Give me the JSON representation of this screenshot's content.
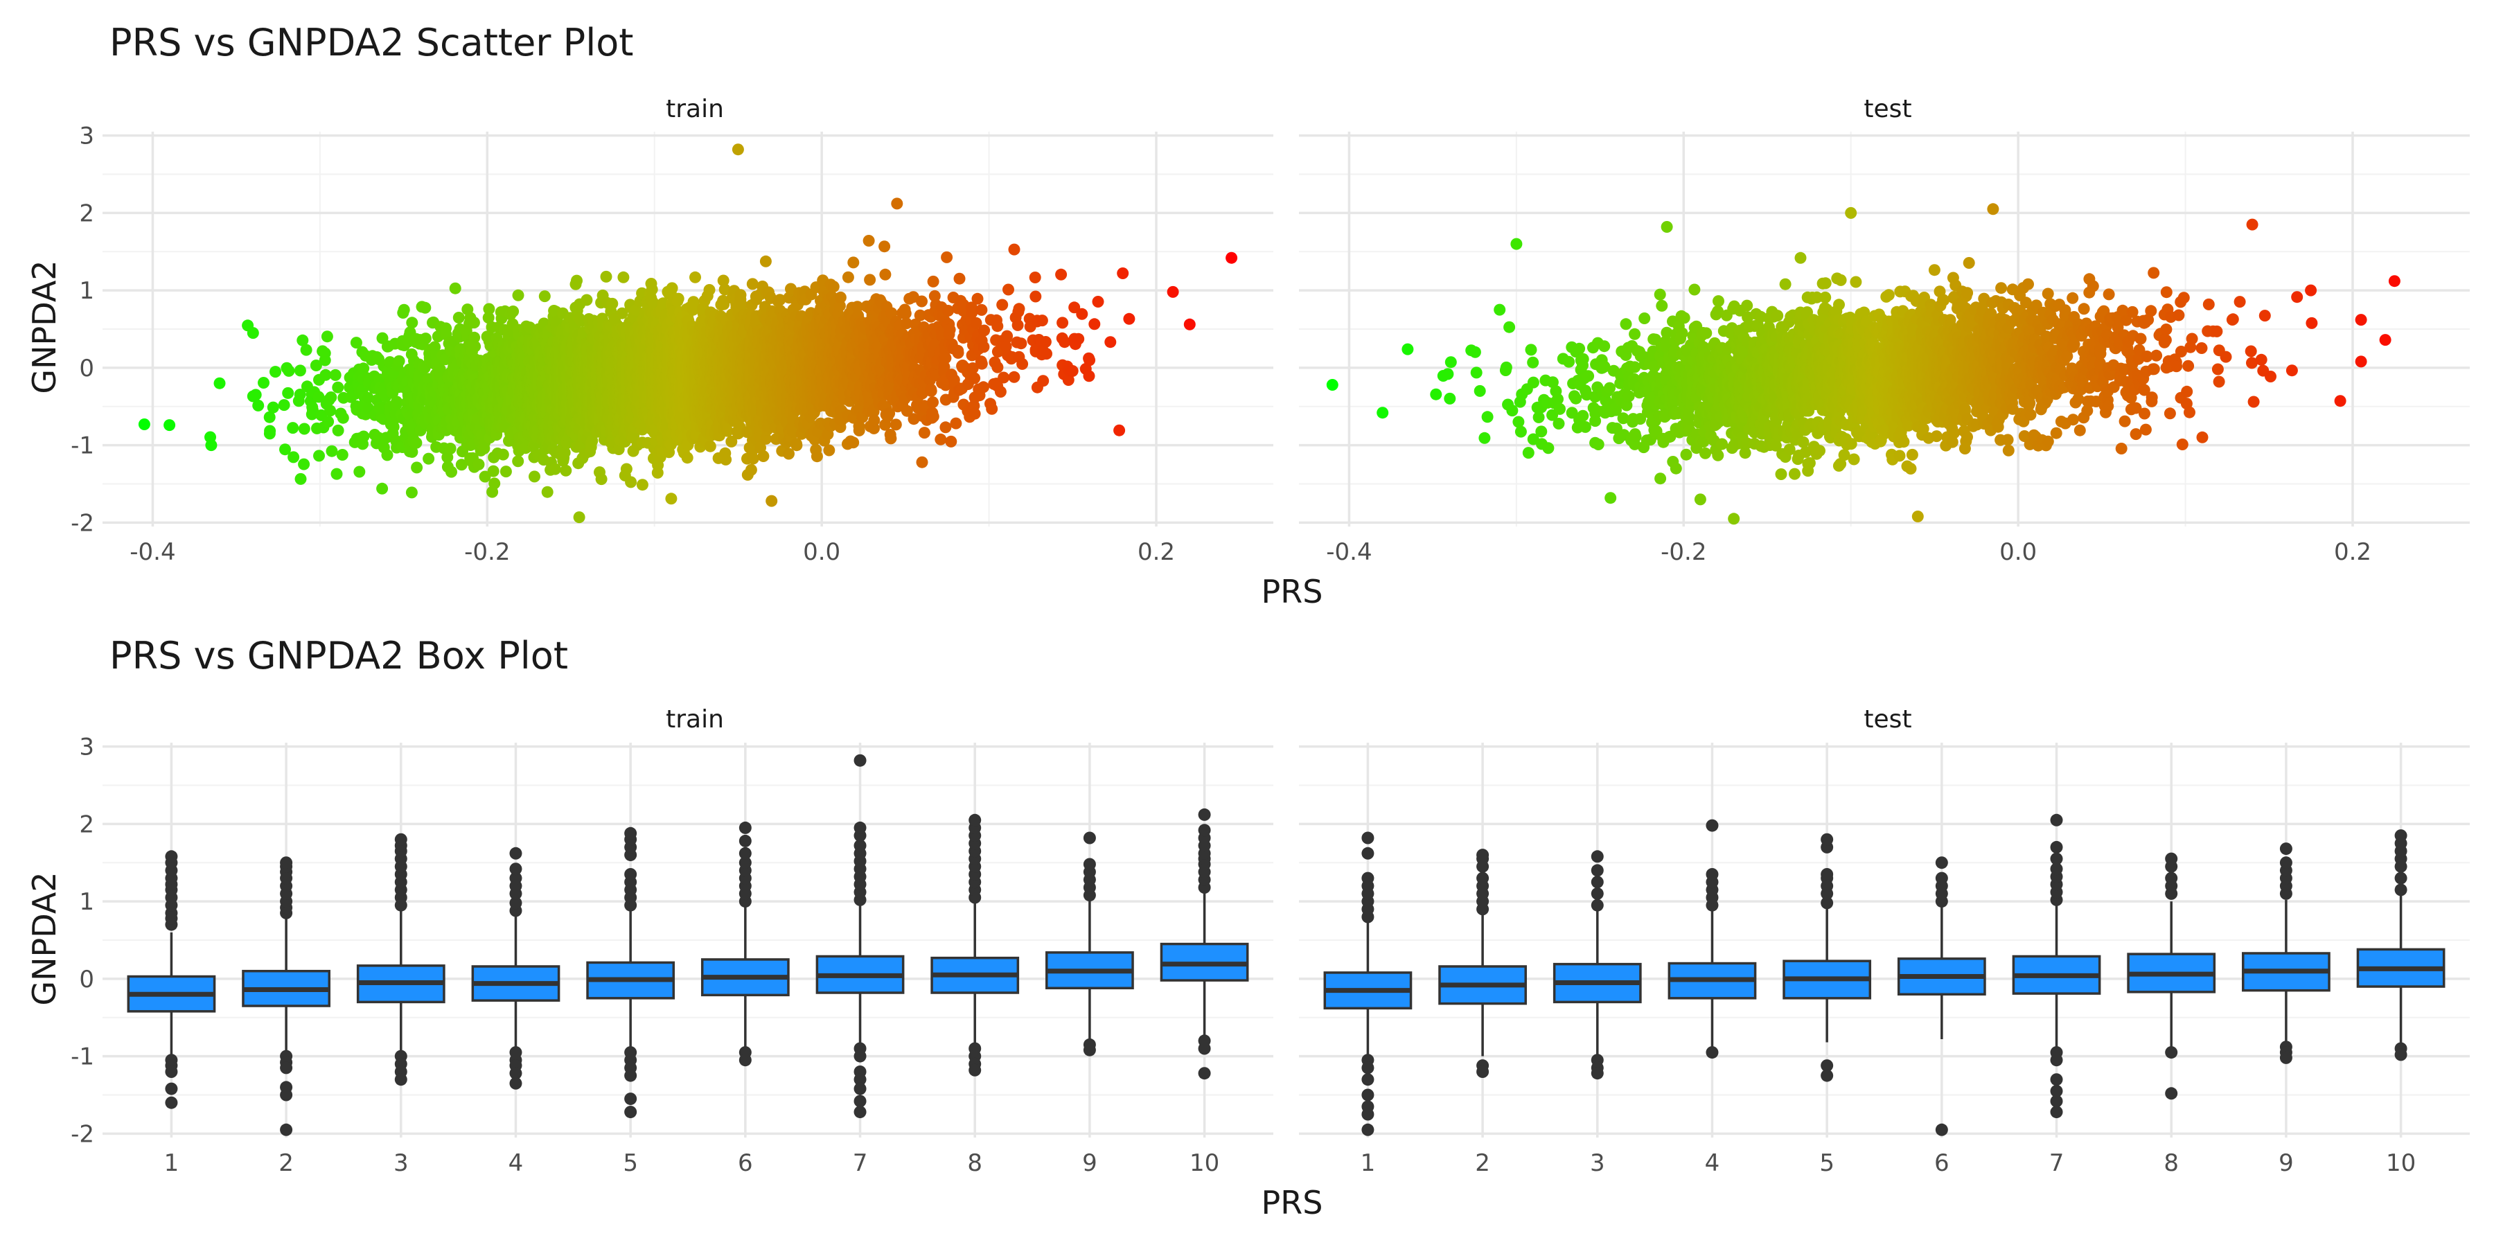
{
  "chart_data": [
    {
      "type": "scatter",
      "title": "PRS vs GNPDA2 Scatter Plot",
      "xlabel": "PRS",
      "ylabel": "GNPDA2",
      "xlim": [
        -0.43,
        0.27
      ],
      "ylim": [
        -2.05,
        3.05
      ],
      "xticks": [
        "-0.4",
        "-0.2",
        "0.0",
        "0.2"
      ],
      "yticks": [
        "-2",
        "-1",
        "0",
        "1",
        "2",
        "3"
      ],
      "color_scale": {
        "low": "#00ff00",
        "high": "#ff0000",
        "mapped_to": "PRS"
      },
      "grid": true,
      "facets": [
        {
          "label": "train",
          "trend": {
            "slope": 1.5,
            "intercept": 0.03,
            "resid_sd": 0.42
          },
          "prs_sd": 0.085,
          "n_points_approx": 6000,
          "extreme_points": [
            {
              "x": -0.405,
              "y": -0.73
            },
            {
              "x": -0.39,
              "y": -0.74
            },
            {
              "x": -0.365,
              "y": -1.0
            },
            {
              "x": -0.36,
              "y": -0.2
            },
            {
              "x": -0.34,
              "y": 0.45
            },
            {
              "x": -0.33,
              "y": -0.85
            },
            {
              "x": -0.145,
              "y": -1.93
            },
            {
              "x": -0.05,
              "y": 2.82
            },
            {
              "x": -0.03,
              "y": -1.72
            },
            {
              "x": -0.09,
              "y": -1.69
            },
            {
              "x": 0.045,
              "y": 2.12
            },
            {
              "x": 0.06,
              "y": -1.22
            },
            {
              "x": 0.18,
              "y": 1.22
            },
            {
              "x": 0.21,
              "y": 0.98
            },
            {
              "x": 0.22,
              "y": 0.56
            },
            {
              "x": 0.245,
              "y": 1.42
            }
          ]
        },
        {
          "label": "test",
          "trend": {
            "slope": 1.45,
            "intercept": 0.03,
            "resid_sd": 0.42
          },
          "prs_sd": 0.085,
          "n_points_approx": 3000,
          "extreme_points": [
            {
              "x": -0.41,
              "y": -0.22
            },
            {
              "x": -0.38,
              "y": -0.58
            },
            {
              "x": -0.365,
              "y": 0.24
            },
            {
              "x": -0.31,
              "y": 0.75
            },
            {
              "x": -0.3,
              "y": 1.6
            },
            {
              "x": -0.21,
              "y": 1.82
            },
            {
              "x": -0.19,
              "y": -1.7
            },
            {
              "x": -0.17,
              "y": -1.95
            },
            {
              "x": -0.1,
              "y": 2.0
            },
            {
              "x": -0.015,
              "y": 2.05
            },
            {
              "x": -0.06,
              "y": -1.92
            },
            {
              "x": 0.14,
              "y": 1.85
            },
            {
              "x": 0.175,
              "y": 1.0
            },
            {
              "x": 0.205,
              "y": 0.62
            },
            {
              "x": 0.205,
              "y": 0.08
            },
            {
              "x": 0.225,
              "y": 1.12
            }
          ]
        }
      ]
    },
    {
      "type": "box",
      "title": "PRS vs GNPDA2 Box Plot",
      "xlabel": "PRS",
      "ylabel": "GNPDA2",
      "categories": [
        "1",
        "2",
        "3",
        "4",
        "5",
        "6",
        "7",
        "8",
        "9",
        "10"
      ],
      "ylim": [
        -2.05,
        3.05
      ],
      "yticks": [
        "-2",
        "-1",
        "0",
        "1",
        "2",
        "3"
      ],
      "box_color": "#1e90ff",
      "grid": true,
      "facets": [
        {
          "label": "train",
          "boxes": [
            {
              "q1": -0.42,
              "median": -0.2,
              "q3": 0.03,
              "low": -1.0,
              "high": 0.6,
              "outliers": [
                -1.05,
                -1.12,
                -1.2,
                -1.42,
                -1.6,
                0.7,
                0.78,
                0.85,
                0.95,
                1.05,
                1.15,
                1.22,
                1.3,
                1.4,
                1.5,
                1.58
              ]
            },
            {
              "q1": -0.35,
              "median": -0.14,
              "q3": 0.1,
              "low": -0.95,
              "high": 0.8,
              "outliers": [
                -1.0,
                -1.08,
                -1.15,
                -1.4,
                -1.5,
                -1.95,
                0.85,
                0.92,
                1.0,
                1.1,
                1.2,
                1.3,
                1.38,
                1.45,
                1.5
              ]
            },
            {
              "q1": -0.3,
              "median": -0.05,
              "q3": 0.17,
              "low": -0.95,
              "high": 0.88,
              "outliers": [
                -1.0,
                -1.1,
                -1.2,
                -1.3,
                0.95,
                1.05,
                1.15,
                1.25,
                1.35,
                1.45,
                1.55,
                1.65,
                1.72,
                1.8
              ]
            },
            {
              "q1": -0.28,
              "median": -0.06,
              "q3": 0.16,
              "low": -0.9,
              "high": 0.82,
              "outliers": [
                -0.95,
                -1.05,
                -1.12,
                -1.22,
                -1.35,
                0.88,
                0.98,
                1.1,
                1.2,
                1.3,
                1.42,
                1.62
              ]
            },
            {
              "q1": -0.25,
              "median": -0.01,
              "q3": 0.21,
              "low": -0.88,
              "high": 0.9,
              "outliers": [
                -0.95,
                -1.05,
                -1.15,
                -1.25,
                -1.55,
                -1.72,
                0.95,
                1.05,
                1.15,
                1.25,
                1.35,
                1.6,
                1.7,
                1.8,
                1.88
              ]
            },
            {
              "q1": -0.21,
              "median": 0.02,
              "q3": 0.25,
              "low": -0.88,
              "high": 0.95,
              "outliers": [
                -0.95,
                -1.05,
                1.0,
                1.1,
                1.2,
                1.3,
                1.4,
                1.5,
                1.62,
                1.78,
                1.95
              ]
            },
            {
              "q1": -0.18,
              "median": 0.04,
              "q3": 0.29,
              "low": -0.85,
              "high": 0.98,
              "outliers": [
                -0.9,
                -1.0,
                -1.2,
                -1.3,
                -1.42,
                -1.58,
                -1.72,
                1.02,
                1.12,
                1.22,
                1.32,
                1.42,
                1.52,
                1.62,
                1.72,
                1.85,
                1.95,
                2.82
              ]
            },
            {
              "q1": -0.18,
              "median": 0.05,
              "q3": 0.27,
              "low": -0.85,
              "high": 0.98,
              "outliers": [
                -0.9,
                -1.0,
                -1.1,
                -1.18,
                1.05,
                1.15,
                1.25,
                1.35,
                1.45,
                1.55,
                1.65,
                1.75,
                1.85,
                1.95,
                2.05
              ]
            },
            {
              "q1": -0.12,
              "median": 0.1,
              "q3": 0.34,
              "low": -0.82,
              "high": 1.02,
              "outliers": [
                -0.85,
                -0.92,
                1.08,
                1.18,
                1.28,
                1.38,
                1.48,
                1.82
              ]
            },
            {
              "q1": -0.02,
              "median": 0.19,
              "q3": 0.45,
              "low": -0.75,
              "high": 1.12,
              "outliers": [
                -0.8,
                -0.9,
                -1.22,
                1.18,
                1.28,
                1.38,
                1.48,
                1.55,
                1.62,
                1.72,
                1.82,
                1.92,
                2.12
              ]
            }
          ]
        },
        {
          "label": "test",
          "boxes": [
            {
              "q1": -0.38,
              "median": -0.15,
              "q3": 0.08,
              "low": -1.0,
              "high": 0.75,
              "outliers": [
                -1.05,
                -1.15,
                -1.3,
                -1.5,
                -1.65,
                -1.75,
                -1.95,
                0.8,
                0.9,
                1.0,
                1.1,
                1.2,
                1.3,
                1.62,
                1.82
              ]
            },
            {
              "q1": -0.32,
              "median": -0.08,
              "q3": 0.16,
              "low": -1.0,
              "high": 0.85,
              "outliers": [
                -1.12,
                -1.2,
                0.9,
                1.0,
                1.1,
                1.2,
                1.3,
                1.45,
                1.55,
                1.6
              ]
            },
            {
              "q1": -0.3,
              "median": -0.05,
              "q3": 0.19,
              "low": -0.98,
              "high": 0.9,
              "outliers": [
                -1.05,
                -1.15,
                -1.22,
                0.95,
                1.1,
                1.25,
                1.4,
                1.58
              ]
            },
            {
              "q1": -0.25,
              "median": -0.01,
              "q3": 0.2,
              "low": -0.92,
              "high": 0.9,
              "outliers": [
                -0.95,
                0.95,
                1.05,
                1.15,
                1.25,
                1.35,
                1.98
              ]
            },
            {
              "q1": -0.25,
              "median": 0.0,
              "q3": 0.23,
              "low": -0.82,
              "high": 0.92,
              "outliers": [
                -1.12,
                -1.25,
                0.98,
                1.1,
                1.2,
                1.3,
                1.35,
                1.7,
                1.8
              ]
            },
            {
              "q1": -0.2,
              "median": 0.03,
              "q3": 0.26,
              "low": -0.78,
              "high": 0.95,
              "outliers": [
                -1.95,
                1.0,
                1.1,
                1.2,
                1.3,
                1.5
              ]
            },
            {
              "q1": -0.19,
              "median": 0.04,
              "q3": 0.29,
              "low": -0.88,
              "high": 0.98,
              "outliers": [
                -0.95,
                -1.05,
                -1.3,
                -1.45,
                -1.58,
                -1.72,
                1.02,
                1.12,
                1.22,
                1.32,
                1.42,
                1.55,
                1.7,
                2.05
              ]
            },
            {
              "q1": -0.17,
              "median": 0.06,
              "q3": 0.32,
              "low": -0.88,
              "high": 1.0,
              "outliers": [
                -0.95,
                -1.48,
                1.1,
                1.2,
                1.3,
                1.45,
                1.55
              ]
            },
            {
              "q1": -0.15,
              "median": 0.1,
              "q3": 0.33,
              "low": -0.82,
              "high": 1.02,
              "outliers": [
                -0.88,
                -0.95,
                -1.02,
                1.1,
                1.2,
                1.3,
                1.4,
                1.5,
                1.68
              ]
            },
            {
              "q1": -0.1,
              "median": 0.13,
              "q3": 0.38,
              "low": -0.85,
              "high": 1.08,
              "outliers": [
                -0.9,
                -0.98,
                1.15,
                1.3,
                1.45,
                1.55,
                1.65,
                1.75,
                1.85
              ]
            }
          ]
        }
      ]
    }
  ]
}
